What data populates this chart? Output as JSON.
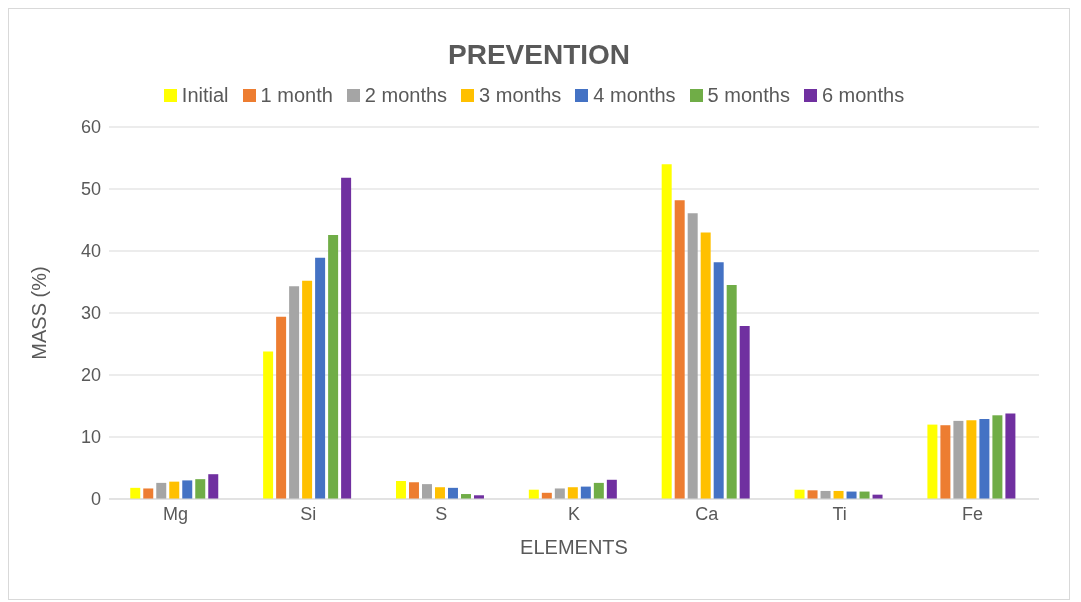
{
  "chart_data": {
    "type": "bar",
    "title": "PREVENTION",
    "xlabel": "ELEMENTS",
    "ylabel": "MASS (%)",
    "categories": [
      "Mg",
      "Si",
      "S",
      "K",
      "Ca",
      "Ti",
      "Fe"
    ],
    "series": [
      {
        "name": "Initial",
        "color": "#ffff00",
        "values": [
          1.8,
          23.8,
          2.9,
          1.5,
          54.0,
          1.5,
          12.0
        ]
      },
      {
        "name": "1 month",
        "color": "#ed7d31",
        "values": [
          1.7,
          29.4,
          2.7,
          1.0,
          48.2,
          1.4,
          11.9
        ]
      },
      {
        "name": "2 months",
        "color": "#a5a5a5",
        "values": [
          2.6,
          34.3,
          2.4,
          1.7,
          46.1,
          1.3,
          12.6
        ]
      },
      {
        "name": "3 months",
        "color": "#ffc000",
        "values": [
          2.8,
          35.2,
          1.9,
          1.9,
          43.0,
          1.3,
          12.7
        ]
      },
      {
        "name": "4 months",
        "color": "#4472c4",
        "values": [
          3.0,
          38.9,
          1.8,
          2.0,
          38.2,
          1.2,
          12.9
        ]
      },
      {
        "name": "5 months",
        "color": "#70ad47",
        "values": [
          3.2,
          42.6,
          0.8,
          2.6,
          34.5,
          1.2,
          13.5
        ]
      },
      {
        "name": "6 months",
        "color": "#7030a0",
        "values": [
          4.0,
          51.8,
          0.6,
          3.1,
          27.9,
          0.7,
          13.8
        ]
      }
    ],
    "ylim": [
      0,
      60
    ],
    "yticks": [
      0,
      10,
      20,
      30,
      40,
      50,
      60
    ],
    "grid": "y",
    "legend": "top"
  }
}
